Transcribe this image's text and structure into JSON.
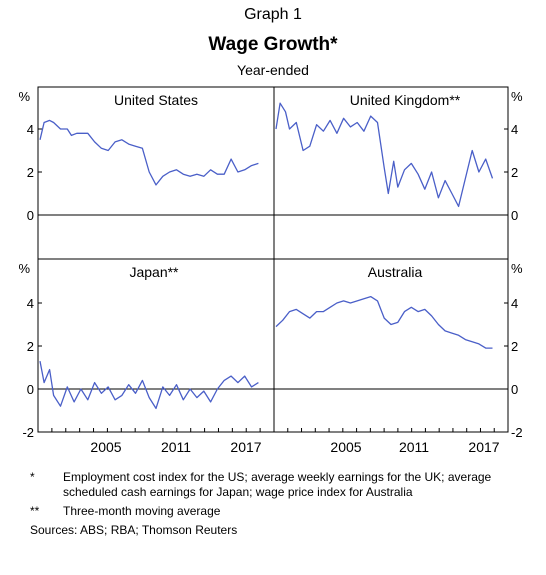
{
  "header": {
    "graph_number": "Graph 1",
    "title": "Wage Growth*",
    "subtitle": "Year-ended"
  },
  "chart_data": {
    "type": "line",
    "line_color": "#4a5fc8",
    "x_ticks": [
      "2005",
      "2011",
      "2017"
    ],
    "y_unit": "%",
    "panels": [
      {
        "title": "United States",
        "ylim": [
          0,
          5
        ],
        "yticks": [
          "0",
          "2",
          "4"
        ],
        "series": [
          {
            "x": [
              2001.0,
              2001.3,
              2001.7,
              2002.0,
              2002.5,
              2003.0,
              2003.3,
              2003.7,
              2004.0,
              2004.5,
              2005.0,
              2005.5,
              2006.0,
              2006.5,
              2007.0,
              2007.5,
              2008.0,
              2008.5,
              2009.0,
              2009.5,
              2010.0,
              2010.5,
              2011.0,
              2011.5,
              2012.0,
              2012.5,
              2013.0,
              2013.5,
              2014.0,
              2014.5,
              2015.0,
              2015.5,
              2016.0,
              2016.5,
              2017.0
            ],
            "values": [
              3.5,
              4.3,
              4.4,
              4.3,
              4.0,
              4.0,
              3.7,
              3.8,
              3.8,
              3.8,
              3.4,
              3.1,
              3.0,
              3.4,
              3.5,
              3.3,
              3.2,
              3.1,
              2.0,
              1.4,
              1.8,
              2.0,
              2.1,
              1.9,
              1.8,
              1.9,
              1.8,
              2.1,
              1.9,
              1.9,
              2.6,
              2.0,
              2.1,
              2.3,
              2.4
            ]
          }
        ]
      },
      {
        "title": "United Kingdom**",
        "ylim": [
          0,
          5
        ],
        "yticks": [
          "0",
          "2",
          "4"
        ],
        "series": [
          {
            "x": [
              2001.0,
              2001.3,
              2001.7,
              2002.0,
              2002.5,
              2003.0,
              2003.5,
              2004.0,
              2004.5,
              2005.0,
              2005.5,
              2006.0,
              2006.5,
              2007.0,
              2007.5,
              2008.0,
              2008.5,
              2009.0,
              2009.3,
              2009.7,
              2010.0,
              2010.5,
              2011.0,
              2011.5,
              2012.0,
              2012.5,
              2013.0,
              2013.5,
              2014.0,
              2014.5,
              2015.0,
              2015.5,
              2016.0,
              2016.5,
              2017.0
            ],
            "values": [
              4.0,
              5.2,
              4.8,
              4.0,
              4.3,
              3.0,
              3.2,
              4.2,
              3.9,
              4.4,
              3.8,
              4.5,
              4.1,
              4.3,
              3.9,
              4.6,
              4.3,
              2.2,
              1.0,
              2.5,
              1.3,
              2.1,
              2.4,
              1.9,
              1.2,
              2.0,
              0.8,
              1.6,
              1.0,
              0.4,
              1.7,
              3.0,
              2.0,
              2.6,
              1.7
            ]
          }
        ]
      },
      {
        "title": "Japan**",
        "ylim": [
          -2,
          5
        ],
        "yticks": [
          "-2",
          "0",
          "2",
          "4"
        ],
        "series": [
          {
            "x": [
              2001.0,
              2001.3,
              2001.7,
              2002.0,
              2002.5,
              2003.0,
              2003.5,
              2004.0,
              2004.5,
              2005.0,
              2005.5,
              2006.0,
              2006.5,
              2007.0,
              2007.5,
              2008.0,
              2008.5,
              2009.0,
              2009.5,
              2010.0,
              2010.5,
              2011.0,
              2011.5,
              2012.0,
              2012.5,
              2013.0,
              2013.5,
              2014.0,
              2014.5,
              2015.0,
              2015.5,
              2016.0,
              2016.5,
              2017.0
            ],
            "values": [
              1.3,
              0.3,
              0.9,
              -0.3,
              -0.8,
              0.1,
              -0.6,
              0.0,
              -0.5,
              0.3,
              -0.2,
              0.1,
              -0.5,
              -0.3,
              0.2,
              -0.2,
              0.4,
              -0.4,
              -0.9,
              0.1,
              -0.3,
              0.2,
              -0.5,
              0.0,
              -0.4,
              -0.1,
              -0.6,
              0.0,
              0.4,
              0.6,
              0.3,
              0.6,
              0.1,
              0.3
            ]
          }
        ]
      },
      {
        "title": "Australia",
        "ylim": [
          -2,
          5
        ],
        "yticks": [
          "-2",
          "0",
          "2",
          "4"
        ],
        "series": [
          {
            "x": [
              2001.0,
              2001.5,
              2002.0,
              2002.5,
              2003.0,
              2003.5,
              2004.0,
              2004.5,
              2005.0,
              2005.5,
              2006.0,
              2006.5,
              2007.0,
              2007.5,
              2008.0,
              2008.5,
              2009.0,
              2009.5,
              2010.0,
              2010.5,
              2011.0,
              2011.5,
              2012.0,
              2012.5,
              2013.0,
              2013.5,
              2014.0,
              2014.5,
              2015.0,
              2015.5,
              2016.0,
              2016.5,
              2017.0
            ],
            "values": [
              2.9,
              3.2,
              3.6,
              3.7,
              3.5,
              3.3,
              3.6,
              3.6,
              3.8,
              4.0,
              4.1,
              4.0,
              4.1,
              4.2,
              4.3,
              4.1,
              3.3,
              3.0,
              3.1,
              3.6,
              3.8,
              3.6,
              3.7,
              3.4,
              3.0,
              2.7,
              2.6,
              2.5,
              2.3,
              2.2,
              2.1,
              1.9,
              1.9
            ]
          }
        ]
      }
    ]
  },
  "notes": {
    "star_mark": "*",
    "star_text": "Employment cost index for the US; average weekly earnings for the UK; average scheduled cash earnings for Japan; wage price index for Australia",
    "double_star_mark": "**",
    "double_star_text": "Three-month moving average",
    "sources": "Sources:   ABS; RBA; Thomson Reuters"
  }
}
